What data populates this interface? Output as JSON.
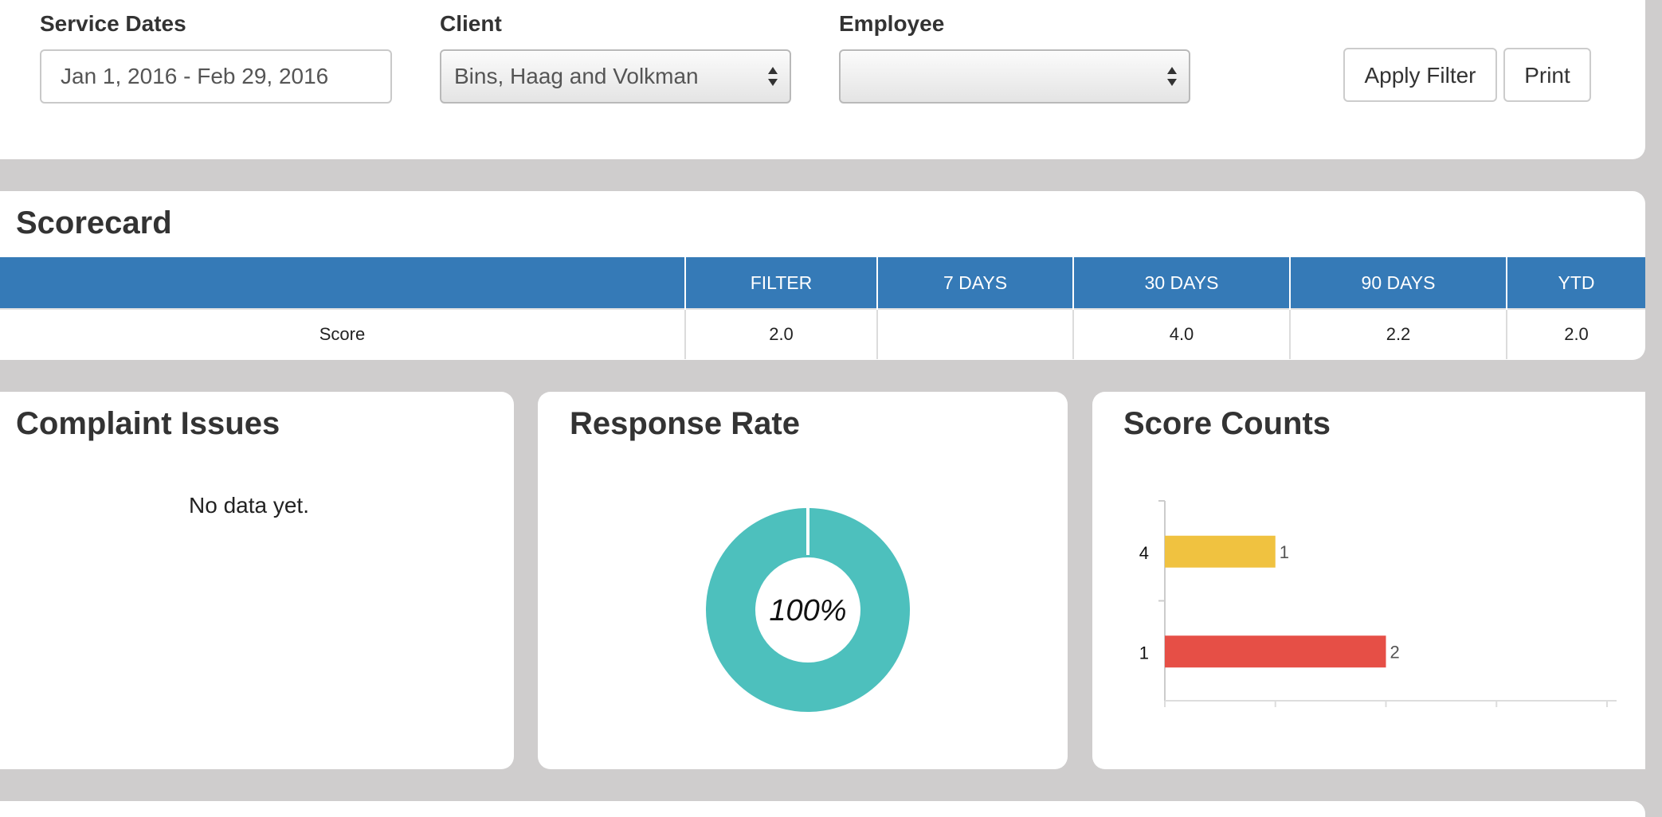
{
  "filters": {
    "service_dates_label": "Service Dates",
    "service_dates_value": "Jan 1, 2016 - Feb 29, 2016",
    "client_label": "Client",
    "client_value": "Bins, Haag and Volkman",
    "employee_label": "Employee",
    "employee_value": "",
    "apply_label": "Apply Filter",
    "print_label": "Print"
  },
  "scorecard": {
    "title": "Scorecard",
    "columns": [
      "",
      "FILTER",
      "7 DAYS",
      "30 DAYS",
      "90 DAYS",
      "YTD"
    ],
    "rows": [
      [
        "Score",
        "2.0",
        "",
        "4.0",
        "2.2",
        "2.0"
      ]
    ],
    "header_color": "#357ab7"
  },
  "complaint_issues": {
    "title": "Complaint Issues",
    "empty_message": "No data yet."
  },
  "response_rate": {
    "title": "Response Rate",
    "center_label": "100%",
    "value_percent": 100,
    "color": "#4dc0bd"
  },
  "score_counts": {
    "title": "Score Counts",
    "chart_data": {
      "type": "bar",
      "orientation": "horizontal",
      "categories": [
        "4",
        "1"
      ],
      "values": [
        1,
        2
      ],
      "value_labels": [
        "1",
        "2"
      ],
      "colors": [
        "#f0c240",
        "#e64f46"
      ],
      "xlim": [
        0,
        4
      ],
      "title": "",
      "xlabel": "",
      "ylabel": ""
    }
  }
}
